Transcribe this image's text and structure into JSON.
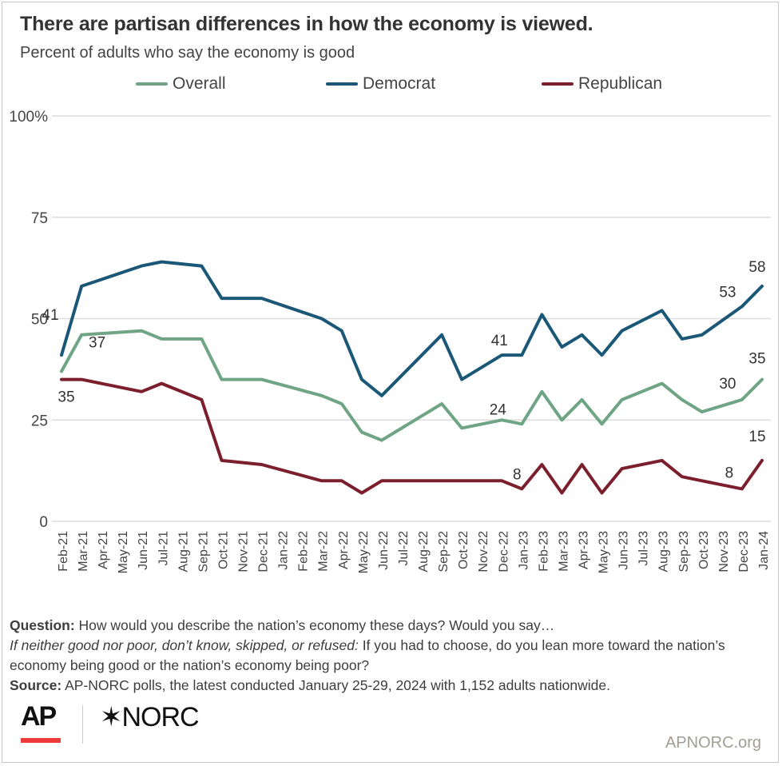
{
  "title": "There are partisan differences in how the economy is viewed.",
  "subtitle": "Percent of adults who say the economy is good",
  "notes": {
    "question_label": "Question:",
    "question_text": "How would you describe the nation’s economy these days? Would you say…",
    "followup_label": "If neither good nor poor, don’t know, skipped, or refused:",
    "followup_text": "If you had to choose, do you lean more toward the nation’s economy being good or the nation’s economy being poor?",
    "source_label": "Source:",
    "source_text": "AP-NORC polls, the latest conducted January 25-29, 2024 with 1,152 adults nationwide."
  },
  "logos": {
    "ap": "AP",
    "norc": "NORC",
    "url": "APNORC.org"
  },
  "chart_data": {
    "type": "line",
    "title": "There are partisan differences in how the economy is viewed.",
    "ylabel": "Percent of adults who say the economy is good",
    "ylim": [
      0,
      100
    ],
    "yticks": [
      0,
      25,
      50,
      75,
      100
    ],
    "ytick_labels": [
      "0",
      "25",
      "50",
      "75",
      "100%"
    ],
    "grid": true,
    "legend_placement": "top",
    "categories": [
      "Feb-21",
      "Mar-21",
      "Apr-21",
      "May-21",
      "Jun-21",
      "Jul-21",
      "Aug-21",
      "Sep-21",
      "Oct-21",
      "Nov-21",
      "Dec-21",
      "Jan-22",
      "Feb-22",
      "Mar-22",
      "Apr-22",
      "May-22",
      "Jun-22",
      "Jul-22",
      "Aug-22",
      "Sep-22",
      "Oct-22",
      "Nov-22",
      "Dec-22",
      "Jan-23",
      "Feb-23",
      "Mar-23",
      "Apr-23",
      "May-23",
      "Jun-23",
      "Jul-23",
      "Aug-23",
      "Sep-23",
      "Oct-23",
      "Nov-23",
      "Dec-23",
      "Jan-24"
    ],
    "series": [
      {
        "name": "Overall",
        "color": "#6fa585",
        "points": [
          [
            "Feb-21",
            37
          ],
          [
            "Mar-21",
            46
          ],
          [
            "Jun-21",
            47
          ],
          [
            "Jul-21",
            45
          ],
          [
            "Sep-21",
            45
          ],
          [
            "Oct-21",
            35
          ],
          [
            "Dec-21",
            35
          ],
          [
            "Mar-22",
            31
          ],
          [
            "Apr-22",
            29
          ],
          [
            "May-22",
            22
          ],
          [
            "Jun-22",
            20
          ],
          [
            "Sep-22",
            29
          ],
          [
            "Oct-22",
            23
          ],
          [
            "Dec-22",
            25
          ],
          [
            "Jan-23",
            24
          ],
          [
            "Feb-23",
            32
          ],
          [
            "Mar-23",
            25
          ],
          [
            "Apr-23",
            30
          ],
          [
            "May-23",
            24
          ],
          [
            "Jun-23",
            30
          ],
          [
            "Aug-23",
            34
          ],
          [
            "Sep-23",
            30
          ],
          [
            "Oct-23",
            27
          ],
          [
            "Dec-23",
            30
          ],
          [
            "Jan-24",
            35
          ]
        ],
        "labels": [
          [
            "Feb-21",
            "37"
          ],
          [
            "Jan-23",
            "24"
          ],
          [
            "Dec-23",
            "30"
          ],
          [
            "Jan-24",
            "35"
          ]
        ]
      },
      {
        "name": "Democrat",
        "color": "#1b5877",
        "points": [
          [
            "Feb-21",
            41
          ],
          [
            "Mar-21",
            58
          ],
          [
            "Jun-21",
            63
          ],
          [
            "Jul-21",
            64
          ],
          [
            "Sep-21",
            63
          ],
          [
            "Oct-21",
            55
          ],
          [
            "Dec-21",
            55
          ],
          [
            "Mar-22",
            50
          ],
          [
            "Apr-22",
            47
          ],
          [
            "May-22",
            35
          ],
          [
            "Jun-22",
            31
          ],
          [
            "Sep-22",
            46
          ],
          [
            "Oct-22",
            35
          ],
          [
            "Dec-22",
            41
          ],
          [
            "Jan-23",
            41
          ],
          [
            "Feb-23",
            51
          ],
          [
            "Mar-23",
            43
          ],
          [
            "Apr-23",
            46
          ],
          [
            "May-23",
            41
          ],
          [
            "Jun-23",
            47
          ],
          [
            "Aug-23",
            52
          ],
          [
            "Sep-23",
            45
          ],
          [
            "Oct-23",
            46
          ],
          [
            "Dec-23",
            53
          ],
          [
            "Jan-24",
            58
          ]
        ],
        "labels": [
          [
            "Feb-21",
            "41"
          ],
          [
            "Jan-23",
            "41"
          ],
          [
            "Dec-23",
            "53"
          ],
          [
            "Jan-24",
            "58"
          ]
        ]
      },
      {
        "name": "Republican",
        "color": "#7c1f2c",
        "points": [
          [
            "Feb-21",
            35
          ],
          [
            "Mar-21",
            35
          ],
          [
            "Jun-21",
            32
          ],
          [
            "Jul-21",
            34
          ],
          [
            "Sep-21",
            30
          ],
          [
            "Oct-21",
            15
          ],
          [
            "Dec-21",
            14
          ],
          [
            "Mar-22",
            10
          ],
          [
            "Apr-22",
            10
          ],
          [
            "May-22",
            7
          ],
          [
            "Jun-22",
            10
          ],
          [
            "Sep-22",
            10
          ],
          [
            "Dec-22",
            10
          ],
          [
            "Jan-23",
            8
          ],
          [
            "Feb-23",
            14
          ],
          [
            "Mar-23",
            7
          ],
          [
            "Apr-23",
            14
          ],
          [
            "May-23",
            7
          ],
          [
            "Jun-23",
            13
          ],
          [
            "Aug-23",
            15
          ],
          [
            "Sep-23",
            11
          ],
          [
            "Oct-23",
            10
          ],
          [
            "Dec-23",
            8
          ],
          [
            "Jan-24",
            15
          ]
        ],
        "labels": [
          [
            "Feb-21",
            "35"
          ],
          [
            "Jan-23",
            "8"
          ],
          [
            "Dec-23",
            "8"
          ],
          [
            "Jan-24",
            "15"
          ]
        ]
      }
    ]
  }
}
